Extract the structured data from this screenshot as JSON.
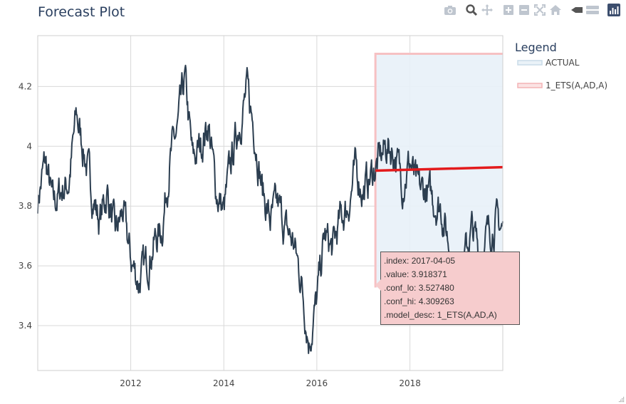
{
  "modebar": {
    "buttons": [
      {
        "name": "camera-icon"
      },
      {
        "name": "zoom-icon"
      },
      {
        "name": "pan-icon"
      },
      {
        "name": "zoom-in-icon"
      },
      {
        "name": "zoom-out-icon"
      },
      {
        "name": "autoscale-icon"
      },
      {
        "name": "reset-axes-icon"
      },
      {
        "name": "spike-lines-icon"
      },
      {
        "name": "compare-data-icon"
      },
      {
        "name": "plotly-logo-icon"
      }
    ]
  },
  "tooltip": {
    "lines": [
      ".index: 2017-04-05",
      ".value: 3.918371",
      ".conf_lo: 3.527480",
      ".conf_hi: 4.309263",
      ".model_desc: 1_ETS(A,AD,A)"
    ]
  },
  "chart_data": {
    "type": "line",
    "title": "Forecast Plot",
    "xlim": [
      "2010-01-01",
      "2019-12-31"
    ],
    "ylim": [
      3.25,
      4.37
    ],
    "x_ticks": [
      "2012",
      "2014",
      "2016",
      "2018"
    ],
    "y_ticks": [
      "3.4",
      "3.6",
      "3.8",
      "4",
      "4.2"
    ],
    "grid": true,
    "legend": {
      "title": "Legend",
      "placement": "right",
      "entries": [
        "ACTUAL",
        "1_ETS(A,AD,A)"
      ]
    },
    "colors": {
      "actual": "#2c3e50",
      "forecast": "#e31a1c",
      "band_fill": "#e8f1f8",
      "band_edge": "#f6c1c3"
    },
    "series": [
      {
        "name": "ACTUAL",
        "x": [
          "2010-01-01",
          "2010-03-01",
          "2010-05-01",
          "2010-07-01",
          "2010-09-01",
          "2010-11-01",
          "2011-01-01",
          "2011-03-01",
          "2011-05-01",
          "2011-07-01",
          "2011-09-01",
          "2011-11-01",
          "2012-01-01",
          "2012-03-01",
          "2012-05-01",
          "2012-07-01",
          "2012-09-01",
          "2012-11-01",
          "2013-01-01",
          "2013-03-01",
          "2013-05-01",
          "2013-07-01",
          "2013-09-01",
          "2013-11-01",
          "2014-01-01",
          "2014-03-01",
          "2014-05-01",
          "2014-07-01",
          "2014-09-01",
          "2014-11-01",
          "2015-01-01",
          "2015-03-01",
          "2015-05-01",
          "2015-07-01",
          "2015-09-01",
          "2015-11-01",
          "2016-01-01",
          "2016-03-01",
          "2016-05-01",
          "2016-07-01",
          "2016-09-01",
          "2016-11-01",
          "2017-01-01",
          "2017-03-01",
          "2017-05-01",
          "2017-07-01",
          "2017-09-01",
          "2017-11-01",
          "2018-01-01",
          "2018-03-01",
          "2018-05-01",
          "2018-07-01",
          "2018-09-01",
          "2018-11-01",
          "2019-01-01",
          "2019-03-01",
          "2019-05-01",
          "2019-07-01",
          "2019-09-01",
          "2019-11-01",
          "2019-12-31"
        ],
        "values": [
          3.82,
          3.95,
          3.8,
          3.85,
          3.88,
          4.1,
          3.98,
          3.85,
          3.75,
          3.85,
          3.7,
          3.78,
          3.62,
          3.55,
          3.6,
          3.68,
          3.72,
          3.95,
          4.05,
          4.22,
          3.95,
          4.0,
          4.08,
          3.85,
          3.78,
          3.95,
          4.08,
          4.18,
          4.05,
          3.85,
          3.75,
          3.8,
          3.72,
          3.68,
          3.55,
          3.35,
          3.48,
          3.7,
          3.65,
          3.75,
          3.8,
          3.92,
          3.85,
          3.9,
          3.95,
          4.0,
          3.98,
          3.88,
          3.95,
          3.85,
          3.85,
          3.82,
          3.8,
          3.68,
          3.55,
          3.62,
          3.72,
          3.65,
          3.7,
          3.75,
          3.72
        ]
      },
      {
        "name": "1_ETS(A,AD,A)",
        "x": [
          "2017-04-05",
          "2019-12-31"
        ],
        "values": [
          3.918371,
          3.93
        ],
        "conf_lo": [
          3.52748,
          3.52748
        ],
        "conf_hi": [
          4.309263,
          4.309263
        ]
      }
    ]
  }
}
